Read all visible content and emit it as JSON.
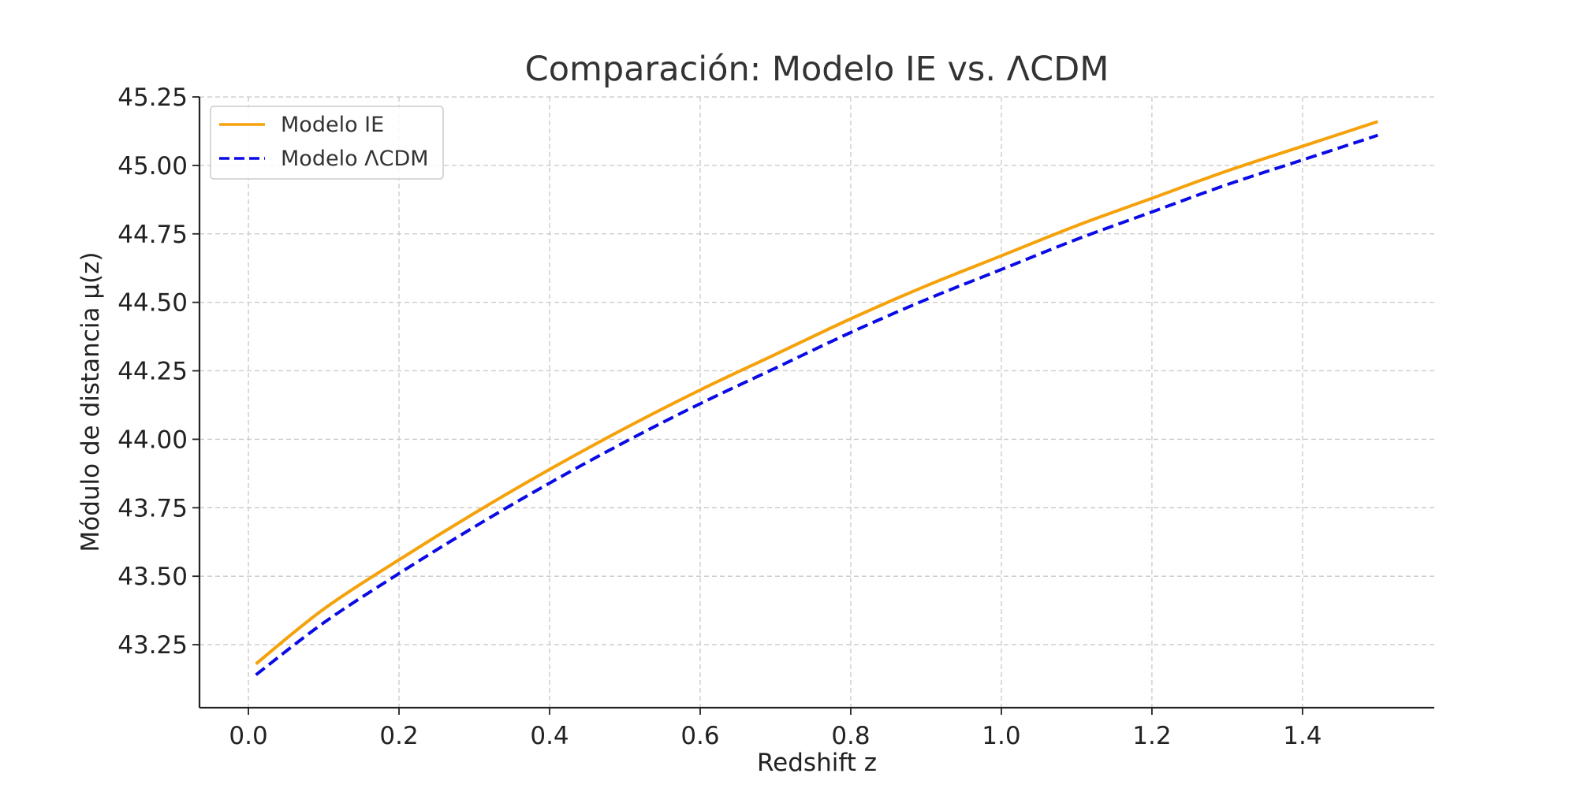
{
  "chart_data": {
    "type": "line",
    "title": "Comparación: Modelo IE vs. ΛCDM",
    "xlabel": "Redshift z",
    "ylabel": "Módulo de distancia μ(z)",
    "xlim": [
      -0.065,
      1.575
    ],
    "ylim": [
      43.02,
      45.25
    ],
    "xticks": [
      0.0,
      0.2,
      0.4,
      0.6,
      0.8,
      1.0,
      1.2,
      1.4
    ],
    "xtick_labels": [
      "0.0",
      "0.2",
      "0.4",
      "0.6",
      "0.8",
      "1.0",
      "1.2",
      "1.4"
    ],
    "yticks": [
      43.25,
      43.5,
      43.75,
      44.0,
      44.25,
      44.5,
      44.75,
      45.0,
      45.25
    ],
    "ytick_labels": [
      "43.25",
      "43.50",
      "43.75",
      "44.00",
      "44.25",
      "44.50",
      "44.75",
      "45.00",
      "45.25"
    ],
    "grid": true,
    "legend_position": "top-left",
    "x": [
      0.01,
      0.1,
      0.2,
      0.3,
      0.4,
      0.5,
      0.6,
      0.7,
      0.8,
      0.9,
      1.0,
      1.1,
      1.2,
      1.3,
      1.4,
      1.5
    ],
    "series": [
      {
        "name": "Modelo IE",
        "color": "#f5a10a",
        "style": "solid",
        "values": [
          43.18,
          43.38,
          43.56,
          43.73,
          43.89,
          44.04,
          44.18,
          44.31,
          44.44,
          44.56,
          44.67,
          44.78,
          44.88,
          44.98,
          45.07,
          45.16
        ]
      },
      {
        "name": "Modelo ΛCDM",
        "color": "#0a0ae6",
        "style": "dashed",
        "values": [
          43.14,
          43.33,
          43.51,
          43.68,
          43.84,
          43.99,
          44.13,
          44.26,
          44.39,
          44.51,
          44.62,
          44.73,
          44.83,
          44.93,
          45.02,
          45.11
        ]
      }
    ]
  }
}
